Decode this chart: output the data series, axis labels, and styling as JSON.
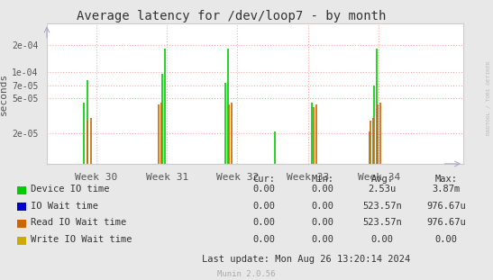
{
  "title": "Average latency for /dev/loop7 - by month",
  "ylabel": "seconds",
  "background_color": "#e8e8e8",
  "plot_bg_color": "#ffffff",
  "grid_color": "#ffaaaa",
  "x_labels": [
    "Week 30",
    "Week 31",
    "Week 32",
    "Week 33",
    "Week 34"
  ],
  "x_ticks": [
    30,
    31,
    32,
    33,
    34
  ],
  "xlim": [
    29.3,
    35.2
  ],
  "yticks": [
    2e-05,
    5e-05,
    7e-05,
    0.0001,
    0.0002
  ],
  "ytick_labels": [
    "2e-05",
    "5e-05",
    "7e-05",
    "1e-04",
    "2e-04"
  ],
  "ylim": [
    9e-06,
    0.00035
  ],
  "spines_color": "#cccccc",
  "device_io_color": "#00cc00",
  "io_wait_color": "#0000cc",
  "read_io_color": "#cc6600",
  "write_io_color": "#ccaa00",
  "device_io_x": [
    29.83,
    29.87,
    30.93,
    30.97,
    31.83,
    31.87,
    32.53,
    33.05,
    33.87,
    33.93,
    33.97
  ],
  "device_io_y": [
    4.5e-05,
    8e-05,
    9.5e-05,
    0.000182,
    7.5e-05,
    0.000182,
    2.1e-05,
    4.5e-05,
    2.1e-05,
    7e-05,
    0.000182
  ],
  "read_io_x": [
    29.88,
    29.92,
    30.88,
    30.92,
    31.88,
    31.92,
    33.08,
    33.12,
    33.88,
    33.92,
    33.98,
    34.02
  ],
  "read_io_y": [
    2.8e-05,
    3e-05,
    4.2e-05,
    4.5e-05,
    4.2e-05,
    4.5e-05,
    4e-05,
    4.2e-05,
    2.8e-05,
    3e-05,
    4.2e-05,
    4.5e-05
  ],
  "right_label": "RRDTOOL / TOBI OETIKER",
  "legend_rows": [
    [
      "Device IO time",
      "#00cc00",
      "0.00",
      "0.00",
      "2.53u",
      "3.87m"
    ],
    [
      "IO Wait time",
      "#0000cc",
      "0.00",
      "0.00",
      "523.57n",
      "976.67u"
    ],
    [
      "Read IO Wait time",
      "#cc6600",
      "0.00",
      "0.00",
      "523.57n",
      "976.67u"
    ],
    [
      "Write IO Wait time",
      "#ccaa00",
      "0.00",
      "0.00",
      "0.00",
      "0.00"
    ]
  ],
  "footer": "Last update: Mon Aug 26 13:20:14 2024",
  "watermark": "Munin 2.0.56"
}
